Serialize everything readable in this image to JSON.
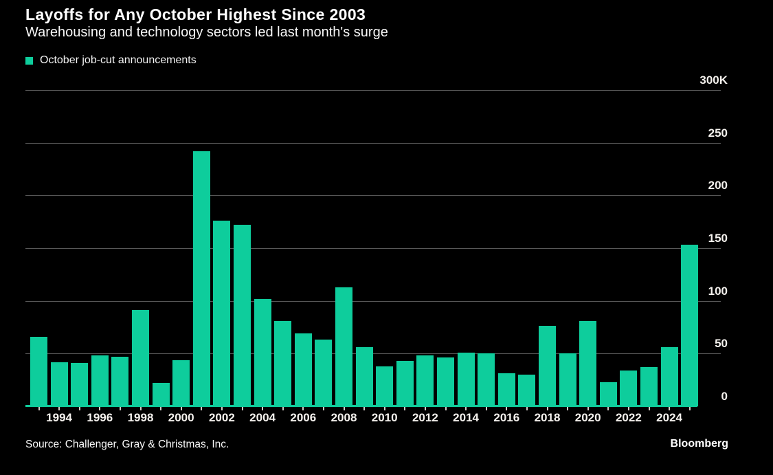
{
  "header": {
    "title": "Layoffs for Any October Highest Since 2003",
    "subtitle": "Warehousing and technology sectors led last month's surge"
  },
  "legend": {
    "label": "October job-cut announcements",
    "swatch_color": "#0ecd9c"
  },
  "chart_data": {
    "type": "bar",
    "title": "Layoffs for Any October Highest Since 2003",
    "subtitle": "Warehousing and technology sectors led last month's surge",
    "legend_entries": [
      "October job-cut announcements"
    ],
    "unit": "thousands of announced job cuts",
    "categories": [
      1993,
      1994,
      1995,
      1996,
      1997,
      1998,
      1999,
      2000,
      2001,
      2002,
      2003,
      2004,
      2005,
      2006,
      2007,
      2008,
      2009,
      2010,
      2011,
      2012,
      2013,
      2014,
      2015,
      2016,
      2017,
      2018,
      2019,
      2020,
      2021,
      2022,
      2023,
      2024,
      2025
    ],
    "values": [
      66,
      42,
      41,
      48,
      47,
      91,
      22,
      44,
      242,
      176,
      172,
      102,
      81,
      69,
      63,
      113,
      56,
      38,
      43,
      48,
      46,
      51,
      50,
      31,
      30,
      76,
      50,
      81,
      23,
      34,
      37,
      56,
      153
    ],
    "xlabel": "",
    "ylabel": "",
    "ylim": [
      0,
      300
    ],
    "y_ticks": [
      {
        "value": 0,
        "label": "0"
      },
      {
        "value": 50,
        "label": "50"
      },
      {
        "value": 100,
        "label": "100"
      },
      {
        "value": 150,
        "label": "150"
      },
      {
        "value": 200,
        "label": "200"
      },
      {
        "value": 250,
        "label": "250"
      },
      {
        "value": 300,
        "label": "300K"
      }
    ],
    "x_tick_labels": [
      "1994",
      "1996",
      "1998",
      "2000",
      "2002",
      "2004",
      "2006",
      "2008",
      "2010",
      "2012",
      "2014",
      "2016",
      "2018",
      "2020",
      "2022",
      "2024"
    ],
    "grid": true,
    "legend_position": "top-left",
    "bar_color": "#0ecd9c",
    "grid_color": "#585858",
    "background_color": "#000000"
  },
  "footer": {
    "source": "Source: Challenger, Gray & Christmas, Inc.",
    "brand": "Bloomberg"
  }
}
